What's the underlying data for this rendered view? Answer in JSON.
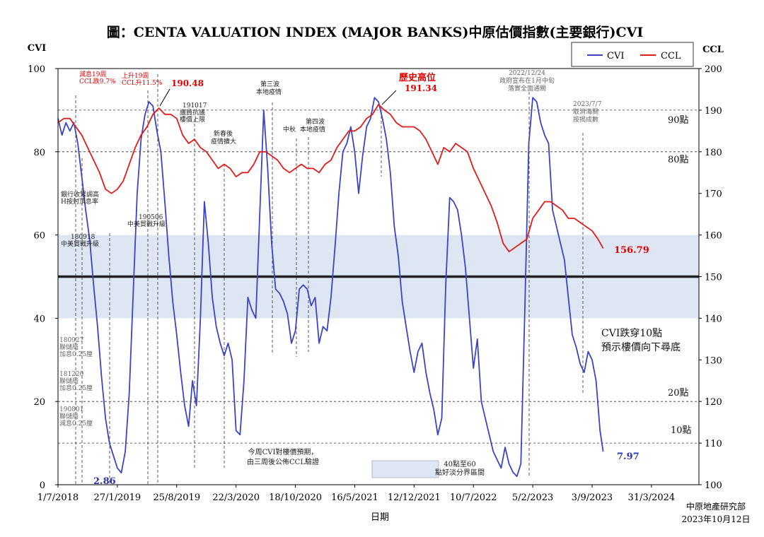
{
  "title": "圖：CENTA VALUATION INDEX (MAJOR BANKS)中原估價指數(主要銀行)CVI",
  "source": {
    "line1": "中原地產研究部",
    "line2": "2023年10月12日"
  },
  "colors": {
    "cvi": "#3b44c4",
    "ccl": "#e21b1b",
    "band": "#dde6f2",
    "midline": "#222222"
  },
  "chart_data": {
    "type": "line",
    "title": "圖：CENTA VALUATION INDEX (MAJOR BANKS)中原估價指數(主要銀行)CVI",
    "xlabel": "日期",
    "ylabel_left": "CVI",
    "ylabel_right": "CCL",
    "ylim_left": [
      0,
      100
    ],
    "ylim_right": [
      100,
      200
    ],
    "yticks_left": [
      "0",
      "20",
      "40",
      "60",
      "80",
      "100"
    ],
    "yticks_right": [
      "100",
      "110",
      "120",
      "130",
      "140",
      "150",
      "160",
      "170",
      "180",
      "190",
      "200"
    ],
    "xticks": [
      "1/7/2018",
      "27/1/2019",
      "25/8/2019",
      "22/3/2020",
      "18/10/2020",
      "16/5/2021",
      "12/12/2021",
      "10/7/2022",
      "5/2/2023",
      "3/9/2023",
      "31/3/2024"
    ],
    "xlim": [
      "2018-07-01",
      "2024-09-15"
    ],
    "grid": false,
    "legend": "top-right",
    "band": {
      "from": 40,
      "to": 60,
      "label": "40點至60點好淡分界區間"
    },
    "midline": 50,
    "levels": [
      {
        "value": 90,
        "label": "90點"
      },
      {
        "value": 80,
        "label": "80點"
      },
      {
        "value": 20,
        "label": "20點"
      },
      {
        "value": 10,
        "label": "10點"
      }
    ],
    "series": [
      {
        "name": "CVI",
        "axis": "left",
        "points": [
          [
            "2018-07-01",
            88
          ],
          [
            "2018-07-15",
            84
          ],
          [
            "2018-07-29",
            87
          ],
          [
            "2018-08-12",
            85
          ],
          [
            "2018-08-26",
            87
          ],
          [
            "2018-09-09",
            82
          ],
          [
            "2018-09-23",
            74
          ],
          [
            "2018-10-07",
            66
          ],
          [
            "2018-10-21",
            59
          ],
          [
            "2018-11-04",
            48
          ],
          [
            "2018-11-18",
            38
          ],
          [
            "2018-12-02",
            26
          ],
          [
            "2018-12-16",
            16
          ],
          [
            "2018-12-30",
            10
          ],
          [
            "2019-01-13",
            7
          ],
          [
            "2019-01-27",
            4
          ],
          [
            "2019-02-10",
            2.86
          ],
          [
            "2019-02-24",
            8
          ],
          [
            "2019-03-10",
            22
          ],
          [
            "2019-03-24",
            46
          ],
          [
            "2019-04-07",
            70
          ],
          [
            "2019-04-21",
            83
          ],
          [
            "2019-05-05",
            89
          ],
          [
            "2019-05-19",
            92
          ],
          [
            "2019-06-02",
            91
          ],
          [
            "2019-06-16",
            85
          ],
          [
            "2019-06-30",
            80
          ],
          [
            "2019-07-14",
            68
          ],
          [
            "2019-07-28",
            55
          ],
          [
            "2019-08-11",
            44
          ],
          [
            "2019-08-25",
            36
          ],
          [
            "2019-09-08",
            27
          ],
          [
            "2019-09-22",
            19
          ],
          [
            "2019-10-06",
            14
          ],
          [
            "2019-10-20",
            25
          ],
          [
            "2019-11-03",
            19
          ],
          [
            "2019-11-17",
            40
          ],
          [
            "2019-12-01",
            68
          ],
          [
            "2019-12-15",
            58
          ],
          [
            "2019-12-29",
            45
          ],
          [
            "2020-01-12",
            38
          ],
          [
            "2020-01-26",
            34
          ],
          [
            "2020-02-09",
            31
          ],
          [
            "2020-02-23",
            34
          ],
          [
            "2020-03-08",
            30
          ],
          [
            "2020-03-22",
            13
          ],
          [
            "2020-04-05",
            12
          ],
          [
            "2020-04-19",
            25
          ],
          [
            "2020-05-03",
            45
          ],
          [
            "2020-05-17",
            42
          ],
          [
            "2020-05-31",
            40
          ],
          [
            "2020-06-14",
            65
          ],
          [
            "2020-06-28",
            90
          ],
          [
            "2020-07-12",
            76
          ],
          [
            "2020-07-26",
            58
          ],
          [
            "2020-08-09",
            47
          ],
          [
            "2020-08-23",
            46
          ],
          [
            "2020-09-06",
            44
          ],
          [
            "2020-09-20",
            41
          ],
          [
            "2020-10-04",
            34
          ],
          [
            "2020-10-18",
            37
          ],
          [
            "2020-11-01",
            47
          ],
          [
            "2020-11-15",
            48
          ],
          [
            "2020-11-29",
            47
          ],
          [
            "2020-12-13",
            43
          ],
          [
            "2020-12-27",
            45
          ],
          [
            "2021-01-10",
            34
          ],
          [
            "2021-01-24",
            38
          ],
          [
            "2021-02-07",
            37
          ],
          [
            "2021-02-21",
            45
          ],
          [
            "2021-03-07",
            57
          ],
          [
            "2021-03-21",
            70
          ],
          [
            "2021-04-04",
            80
          ],
          [
            "2021-04-18",
            82
          ],
          [
            "2021-05-02",
            86
          ],
          [
            "2021-05-16",
            80
          ],
          [
            "2021-05-30",
            70
          ],
          [
            "2021-06-13",
            79
          ],
          [
            "2021-06-27",
            86
          ],
          [
            "2021-07-11",
            88
          ],
          [
            "2021-07-25",
            93
          ],
          [
            "2021-08-08",
            92
          ],
          [
            "2021-08-22",
            88
          ],
          [
            "2021-09-05",
            83
          ],
          [
            "2021-09-19",
            75
          ],
          [
            "2021-10-03",
            62
          ],
          [
            "2021-10-17",
            55
          ],
          [
            "2021-10-31",
            44
          ],
          [
            "2021-11-14",
            38
          ],
          [
            "2021-11-28",
            32
          ],
          [
            "2021-12-12",
            27
          ],
          [
            "2021-12-26",
            32
          ],
          [
            "2022-01-09",
            34
          ],
          [
            "2022-01-23",
            27
          ],
          [
            "2022-02-06",
            22
          ],
          [
            "2022-02-20",
            18
          ],
          [
            "2022-03-06",
            12
          ],
          [
            "2022-03-20",
            16
          ],
          [
            "2022-04-03",
            48
          ],
          [
            "2022-04-17",
            69
          ],
          [
            "2022-05-01",
            68
          ],
          [
            "2022-05-15",
            66
          ],
          [
            "2022-05-29",
            60
          ],
          [
            "2022-06-12",
            52
          ],
          [
            "2022-06-26",
            40
          ],
          [
            "2022-07-10",
            28
          ],
          [
            "2022-07-24",
            35
          ],
          [
            "2022-08-07",
            20
          ],
          [
            "2022-08-21",
            16
          ],
          [
            "2022-09-04",
            12
          ],
          [
            "2022-09-18",
            8
          ],
          [
            "2022-10-02",
            6
          ],
          [
            "2022-10-16",
            4
          ],
          [
            "2022-10-30",
            9
          ],
          [
            "2022-11-13",
            5
          ],
          [
            "2022-11-27",
            3
          ],
          [
            "2022-12-11",
            2
          ],
          [
            "2022-12-25",
            5
          ],
          [
            "2023-01-08",
            42
          ],
          [
            "2023-01-22",
            82
          ],
          [
            "2023-02-05",
            93
          ],
          [
            "2023-02-19",
            92
          ],
          [
            "2023-03-05",
            87
          ],
          [
            "2023-03-19",
            84
          ],
          [
            "2023-04-02",
            82
          ],
          [
            "2023-04-16",
            66
          ],
          [
            "2023-04-30",
            62
          ],
          [
            "2023-05-14",
            58
          ],
          [
            "2023-05-28",
            54
          ],
          [
            "2023-06-11",
            45
          ],
          [
            "2023-06-25",
            36
          ],
          [
            "2023-07-09",
            33
          ],
          [
            "2023-07-23",
            29
          ],
          [
            "2023-08-06",
            27
          ],
          [
            "2023-08-20",
            32
          ],
          [
            "2023-09-03",
            30
          ],
          [
            "2023-09-17",
            25
          ],
          [
            "2023-10-01",
            13
          ],
          [
            "2023-10-12",
            7.97
          ]
        ]
      },
      {
        "name": "CCL",
        "axis": "right",
        "points": [
          [
            "2018-07-01",
            187
          ],
          [
            "2018-07-22",
            188
          ],
          [
            "2018-08-12",
            188
          ],
          [
            "2018-09-02",
            186
          ],
          [
            "2018-09-23",
            184
          ],
          [
            "2018-10-14",
            181
          ],
          [
            "2018-11-04",
            178
          ],
          [
            "2018-11-25",
            175
          ],
          [
            "2018-12-16",
            171
          ],
          [
            "2019-01-06",
            170
          ],
          [
            "2019-01-27",
            171
          ],
          [
            "2019-02-17",
            173
          ],
          [
            "2019-03-10",
            177
          ],
          [
            "2019-03-31",
            181
          ],
          [
            "2019-04-21",
            184
          ],
          [
            "2019-05-12",
            186
          ],
          [
            "2019-06-02",
            189
          ],
          [
            "2019-06-23",
            190.48
          ],
          [
            "2019-07-14",
            189
          ],
          [
            "2019-08-04",
            189
          ],
          [
            "2019-08-25",
            188
          ],
          [
            "2019-09-15",
            184
          ],
          [
            "2019-10-06",
            182
          ],
          [
            "2019-10-27",
            183
          ],
          [
            "2019-11-17",
            181
          ],
          [
            "2019-12-08",
            180
          ],
          [
            "2019-12-29",
            178
          ],
          [
            "2020-01-19",
            176
          ],
          [
            "2020-02-09",
            177
          ],
          [
            "2020-03-01",
            176
          ],
          [
            "2020-03-22",
            174
          ],
          [
            "2020-04-12",
            175
          ],
          [
            "2020-05-03",
            175
          ],
          [
            "2020-05-24",
            177
          ],
          [
            "2020-06-14",
            180
          ],
          [
            "2020-07-05",
            180
          ],
          [
            "2020-07-26",
            179
          ],
          [
            "2020-08-16",
            178
          ],
          [
            "2020-09-06",
            176
          ],
          [
            "2020-09-27",
            175
          ],
          [
            "2020-10-18",
            176
          ],
          [
            "2020-11-08",
            177
          ],
          [
            "2020-11-29",
            176
          ],
          [
            "2020-12-20",
            176
          ],
          [
            "2021-01-10",
            175
          ],
          [
            "2021-01-31",
            177
          ],
          [
            "2021-02-21",
            178
          ],
          [
            "2021-03-14",
            181
          ],
          [
            "2021-04-04",
            183
          ],
          [
            "2021-04-25",
            185
          ],
          [
            "2021-05-16",
            185
          ],
          [
            "2021-06-06",
            186
          ],
          [
            "2021-06-27",
            188
          ],
          [
            "2021-07-18",
            189
          ],
          [
            "2021-08-08",
            191.34
          ],
          [
            "2021-08-29",
            190
          ],
          [
            "2021-09-19",
            189
          ],
          [
            "2021-10-10",
            187
          ],
          [
            "2021-10-31",
            186
          ],
          [
            "2021-11-21",
            186
          ],
          [
            "2021-12-12",
            186
          ],
          [
            "2022-01-02",
            185
          ],
          [
            "2022-01-23",
            183
          ],
          [
            "2022-02-13",
            180
          ],
          [
            "2022-03-06",
            177
          ],
          [
            "2022-03-27",
            181
          ],
          [
            "2022-04-17",
            180
          ],
          [
            "2022-05-08",
            182
          ],
          [
            "2022-05-29",
            181
          ],
          [
            "2022-06-19",
            180
          ],
          [
            "2022-07-10",
            176
          ],
          [
            "2022-07-31",
            173
          ],
          [
            "2022-08-21",
            170
          ],
          [
            "2022-09-11",
            167
          ],
          [
            "2022-10-02",
            163
          ],
          [
            "2022-10-23",
            158
          ],
          [
            "2022-11-13",
            156
          ],
          [
            "2022-12-04",
            157
          ],
          [
            "2022-12-25",
            158
          ],
          [
            "2023-01-15",
            159
          ],
          [
            "2023-02-05",
            164
          ],
          [
            "2023-02-26",
            166
          ],
          [
            "2023-03-19",
            168
          ],
          [
            "2023-04-09",
            168
          ],
          [
            "2023-04-30",
            167
          ],
          [
            "2023-05-21",
            166
          ],
          [
            "2023-06-11",
            164
          ],
          [
            "2023-07-02",
            164
          ],
          [
            "2023-07-23",
            163
          ],
          [
            "2023-08-13",
            162
          ],
          [
            "2023-09-03",
            161
          ],
          [
            "2023-09-24",
            159
          ],
          [
            "2023-10-12",
            156.79
          ]
        ]
      }
    ],
    "end_values": {
      "cvi": "7.97",
      "ccl": "156.79"
    },
    "low_label": "2.86",
    "peak_label_2019": "190.48",
    "peak_label_2021_title": "歷史高位",
    "peak_label_2021": "191.34",
    "annotations": [
      {
        "id": "ann-0718-red",
        "text": "減息19周\nCCL跌9.7%",
        "color": "red"
      },
      {
        "id": "ann-0119-red",
        "text": "上升19周\nCCL升11.5%",
        "color": "red"
      },
      {
        "id": "ann-bank-tighten",
        "text": "銀行收緊調高\nH按封頂息率"
      },
      {
        "id": "ann-180918",
        "text": "180918\n中美貿戰升級"
      },
      {
        "id": "ann-190506",
        "text": "190506\n中美貿戰升級"
      },
      {
        "id": "ann-191017",
        "text": "191017\n議員抗議\n樓價上限"
      },
      {
        "id": "ann-newyear",
        "text": "新春後\n疫情擴大"
      },
      {
        "id": "ann-wave3",
        "text": "第三波\n本地疫情"
      },
      {
        "id": "ann-midaut",
        "text": "中秋"
      },
      {
        "id": "ann-wave4",
        "text": "第四波\n本地疫情"
      },
      {
        "id": "ann-180927",
        "text": "180927\n聯儲局\n加息0.25厘"
      },
      {
        "id": "ann-181220",
        "text": "181220\n聯儲局\n加息0.25厘"
      },
      {
        "id": "ann-190801",
        "text": "190801\n聯儲局\n減息0.25厘"
      },
      {
        "id": "ann-20221224",
        "text": "2022/12/24\n政府宣布在1月中旬\n落實全面通關"
      },
      {
        "id": "ann-20230707",
        "text": "2023/7/7\n取消海關\n按揭成數"
      },
      {
        "id": "ann-cvi10",
        "text": "CVI跌穿10點\n預示樓價向下尋底"
      },
      {
        "id": "ann-forecast",
        "text": "今周CVI對樓價預期，\n由三周後公佈CCL驗證"
      }
    ]
  }
}
